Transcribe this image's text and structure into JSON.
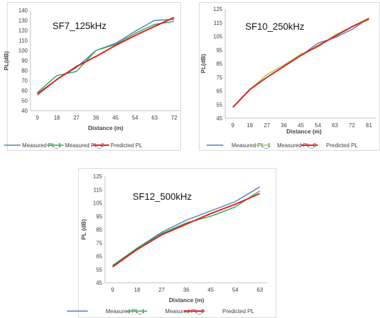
{
  "chart_data": [
    {
      "type": "line",
      "title": "SF7_125kHz",
      "xlabel": "Distance (m)",
      "ylabel": "PL(dB)",
      "categories": [
        "9",
        "18",
        "27",
        "36",
        "45",
        "54",
        "63",
        "72"
      ],
      "ylim": [
        40,
        140
      ],
      "yticks": [
        40,
        50,
        60,
        70,
        80,
        90,
        100,
        110,
        120,
        130,
        140
      ],
      "grid": false,
      "legend": "bottom",
      "series": [
        {
          "name": "Measured PL_1",
          "color": "#4a7ebb",
          "values": [
            57,
            71,
            83,
            100,
            107,
            119,
            130,
            131
          ]
        },
        {
          "name": "Measured PL_2",
          "color": "#1aaa55",
          "values": [
            58,
            75,
            79,
            100,
            106,
            117,
            126,
            129
          ]
        },
        {
          "name": "Predicted  PL",
          "color": "#e81c1c",
          "values": [
            56,
            71,
            84,
            94,
            105,
            115,
            124,
            133
          ]
        }
      ]
    },
    {
      "type": "line",
      "title": "SF10_250kHz",
      "xlabel": "Distance (m)",
      "ylabel": "PL(dB)",
      "categories": [
        "9",
        "18",
        "27",
        "36",
        "45",
        "54",
        "63",
        "72",
        "81"
      ],
      "ylim": [
        45,
        125
      ],
      "yticks": [
        45,
        55,
        65,
        75,
        85,
        95,
        105,
        115,
        125
      ],
      "grid": false,
      "legend": "bottom",
      "series": [
        {
          "name": "Measured PL_1",
          "color": "#4a7ebb",
          "values": [
            53,
            66,
            75,
            83,
            91,
            100,
            104,
            110,
            118
          ]
        },
        {
          "name": "Measured PL_2",
          "color": "#92d050",
          "values": [
            53,
            66,
            77,
            84,
            92,
            97,
            106,
            112,
            117
          ]
        },
        {
          "name": "Predicted  PL",
          "color": "#e81c1c",
          "values": [
            53,
            66,
            75,
            83,
            91,
            98,
            105,
            112,
            118
          ]
        }
      ]
    },
    {
      "type": "line",
      "title": "SF12_500kHz",
      "xlabel": "Distance (m)",
      "ylabel": "PL (dB)",
      "categories": [
        "9",
        "18",
        "27",
        "36",
        "45",
        "54",
        "63"
      ],
      "ylim": [
        45,
        125
      ],
      "yticks": [
        45,
        55,
        65,
        75,
        85,
        95,
        105,
        115,
        125
      ],
      "grid": false,
      "legend": "bottom",
      "series": [
        {
          "name": "Measured PL_1",
          "color": "#4a7ebb",
          "values": [
            57,
            71,
            83,
            92,
            99,
            106,
            117
          ]
        },
        {
          "name": "Measured PL_2",
          "color": "#1aaa55",
          "values": [
            58,
            71,
            82,
            90,
            95,
            102,
            114
          ]
        },
        {
          "name": "Predicted  PL",
          "color": "#e81c1c",
          "values": [
            57,
            70,
            81,
            89,
            97,
            104,
            112
          ]
        }
      ]
    }
  ]
}
